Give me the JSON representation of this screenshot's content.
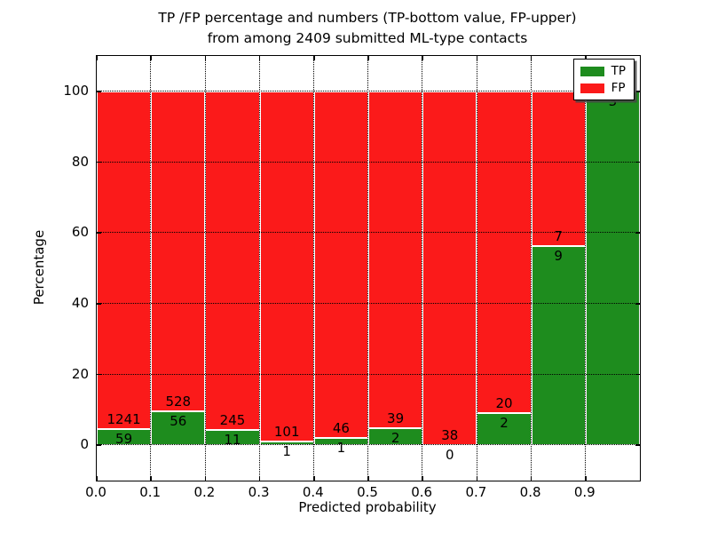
{
  "title": {
    "line1": "TP /FP percentage and numbers (TP-bottom value, FP-upper)",
    "line2": "from among 2409 submitted ML-type contacts"
  },
  "total_contacts": 2409,
  "chart_data": {
    "type": "bar",
    "stacked": true,
    "normalized_to_percent": true,
    "title": "TP /FP percentage and numbers (TP-bottom value, FP-upper) from among 2409 submitted ML-type contacts",
    "xlabel": "Predicted probability",
    "ylabel": "Percentage",
    "xlim": [
      0.0,
      1.0
    ],
    "ylim": [
      -10,
      110
    ],
    "x_tick_labels": [
      "0.0",
      "0.1",
      "0.2",
      "0.3",
      "0.4",
      "0.5",
      "0.6",
      "0.7",
      "0.8",
      "0.9"
    ],
    "y_tick_labels": [
      "0",
      "20",
      "40",
      "60",
      "80",
      "100"
    ],
    "y_tick_values": [
      0,
      20,
      40,
      60,
      80,
      100
    ],
    "grid": "dotted black, both axes, drawn over bars",
    "categories": [
      "0.0-0.1",
      "0.1-0.2",
      "0.2-0.3",
      "0.3-0.4",
      "0.4-0.5",
      "0.5-0.6",
      "0.6-0.7",
      "0.7-0.8",
      "0.8-0.9",
      "0.9-1.0"
    ],
    "bin_width": 0.1,
    "series": [
      {
        "name": "TP",
        "color": "#1e8c1e",
        "values": [
          59,
          56,
          11,
          1,
          1,
          2,
          0,
          2,
          9,
          3
        ]
      },
      {
        "name": "FP",
        "color": "#fb1a1a",
        "values": [
          1241,
          528,
          245,
          101,
          46,
          39,
          38,
          20,
          7,
          0
        ]
      }
    ],
    "tp_percent_of_bin": [
      4.54,
      9.59,
      4.3,
      0.98,
      2.13,
      4.88,
      0.0,
      9.09,
      56.25,
      100.0
    ],
    "legend": {
      "position": "upper right",
      "entries": [
        "TP",
        "FP"
      ],
      "shadow": true
    }
  },
  "colors": {
    "tp_green": "#1e8c1e",
    "fp_red": "#fb1a1a",
    "axes_black": "#000000",
    "background": "#ffffff"
  }
}
